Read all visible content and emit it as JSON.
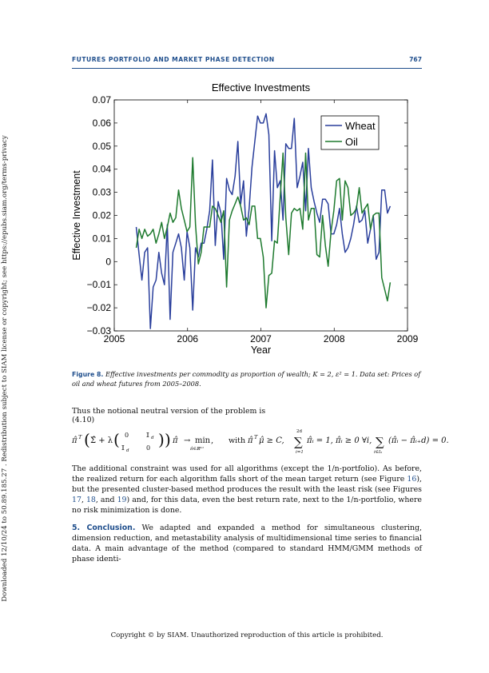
{
  "sidebar": {
    "text": "Downloaded 12/10/24 to 50.89.185.27 . Redistribution subject to SIAM license or copyright; see https://epubs.siam.org/terms-privacy"
  },
  "header": {
    "running_title": "FUTURES PORTFOLIO AND MARKET PHASE DETECTION",
    "page_number": "767"
  },
  "chart_data": {
    "type": "line",
    "title": "Effective Investments",
    "xlabel": "Year",
    "ylabel": "Effective Investment",
    "xlim": [
      2005,
      2009
    ],
    "ylim": [
      -0.03,
      0.07
    ],
    "x_ticks": [
      "2005",
      "2006",
      "2007",
      "2008",
      "2009"
    ],
    "y_ticks": [
      "−0.03",
      "−0.02",
      "−0.01",
      "0",
      "0.01",
      "0.02",
      "0.03",
      "0.04",
      "0.05",
      "0.06",
      "0.07"
    ],
    "legend_position": "top-right",
    "grid": false,
    "x_start": 2005.3,
    "x_step": 0.0385,
    "series": [
      {
        "name": "Wheat",
        "color": "#2a3f9c",
        "values": [
          0.015,
          0.003,
          -0.008,
          0.004,
          0.006,
          -0.029,
          -0.011,
          -0.008,
          0.004,
          -0.005,
          -0.01,
          0.016,
          -0.025,
          0.004,
          0.008,
          0.012,
          0.006,
          -0.008,
          0.013,
          0.006,
          -0.021,
          0.006,
          0.002,
          0.008,
          0.008,
          0.014,
          0.022,
          0.044,
          0.007,
          0.026,
          0.021,
          0.001,
          0.036,
          0.031,
          0.029,
          0.037,
          0.052,
          0.025,
          0.035,
          0.011,
          0.023,
          0.041,
          0.052,
          0.063,
          0.06,
          0.06,
          0.064,
          0.055,
          0.009,
          0.048,
          0.032,
          0.035,
          0.018,
          0.051,
          0.049,
          0.049,
          0.062,
          0.032,
          0.037,
          0.043,
          0.022,
          0.049,
          0.032,
          0.026,
          0.021,
          0.017,
          0.027,
          0.027,
          0.025,
          0.012,
          0.012,
          0.016,
          0.023,
          0.012,
          0.004,
          0.006,
          0.01,
          0.016,
          0.024,
          0.017,
          0.018,
          0.022,
          0.008,
          0.014,
          0.02,
          0.001,
          0.004,
          0.031,
          0.031,
          0.021,
          0.024
        ]
      },
      {
        "name": "Oil",
        "color": "#1e7a2e",
        "values": [
          0.006,
          0.014,
          0.01,
          0.014,
          0.011,
          0.012,
          0.014,
          0.008,
          0.012,
          0.017,
          0.01,
          0.015,
          0.021,
          0.017,
          0.019,
          0.031,
          0.023,
          0.018,
          0.013,
          0.015,
          0.045,
          0.016,
          -0.001,
          0.004,
          0.015,
          0.015,
          0.015,
          0.024,
          0.023,
          0.02,
          0.017,
          0.022,
          -0.011,
          0.018,
          0.022,
          0.025,
          0.028,
          0.024,
          0.018,
          0.019,
          0.016,
          0.024,
          0.024,
          0.01,
          0.01,
          0.002,
          -0.02,
          -0.006,
          -0.005,
          0.009,
          0.008,
          0.028,
          0.047,
          0.019,
          0.003,
          0.021,
          0.023,
          0.022,
          0.023,
          0.014,
          0.047,
          0.018,
          0.023,
          0.023,
          0.003,
          0.002,
          0.02,
          0.007,
          -0.002,
          0.013,
          0.022,
          0.035,
          0.036,
          0.018,
          0.035,
          0.032,
          0.02,
          0.021,
          0.023,
          0.032,
          0.021,
          0.023,
          0.025,
          0.014,
          0.02,
          0.021,
          0.021,
          -0.007,
          -0.012,
          -0.017,
          -0.009
        ]
      }
    ]
  },
  "caption": {
    "label": "Figure 8.",
    "text": "Effective investments per commodity as proportion of wealth; K = 2, ε² = 1. Data set: Prices of oil and wheat futures from 2005–2008."
  },
  "body": {
    "intro": "Thus the notional neutral version of the problem is",
    "eq_number": "(4.10)",
    "para1_a": "The additional constraint was used for all algorithms (except the ",
    "para1_frac": "1/n",
    "para1_b": "-portfolio). As before, the realized return for each algorithm falls short of the mean target return (see Figure ",
    "para1_ref1": "16",
    "para1_c": "), but the presented cluster-based method produces the result with the least risk (see Figures ",
    "para1_ref2": "17",
    "para1_sep1": ", ",
    "para1_ref3": "18",
    "para1_sep2": ", and ",
    "para1_ref4": "19",
    "para1_d": ") and, for this data, even the best return rate, next to the ",
    "para1_frac2": "1/n",
    "para1_e": "-portfolio, where no risk minimization is done.",
    "section_heading": "5. Conclusion.",
    "para2": "We adapted and expanded a method for simultaneous clustering, dimension reduction, and metastability analysis of multidimensional time series to financial data. A main advantage of the method (compared to standard HMM/GMM methods of phase identi-"
  },
  "equation": {
    "lhs": "π̂ᵀ ( Σ̂ + λ ( 0  𝕀_d ; 𝕀_d  0 ) ) π̂ → min",
    "constraints": "with π̂ᵀ μ̂ ≥ C, Σ π̂ᵢ = 1, π̂ᵢ ≥ 0 ∀i, Σ (π̂ᵢ − π̂ᵢ₊d) = 0."
  },
  "footer": {
    "text": "Copyright © by SIAM. Unauthorized reproduction of this article is prohibited."
  }
}
